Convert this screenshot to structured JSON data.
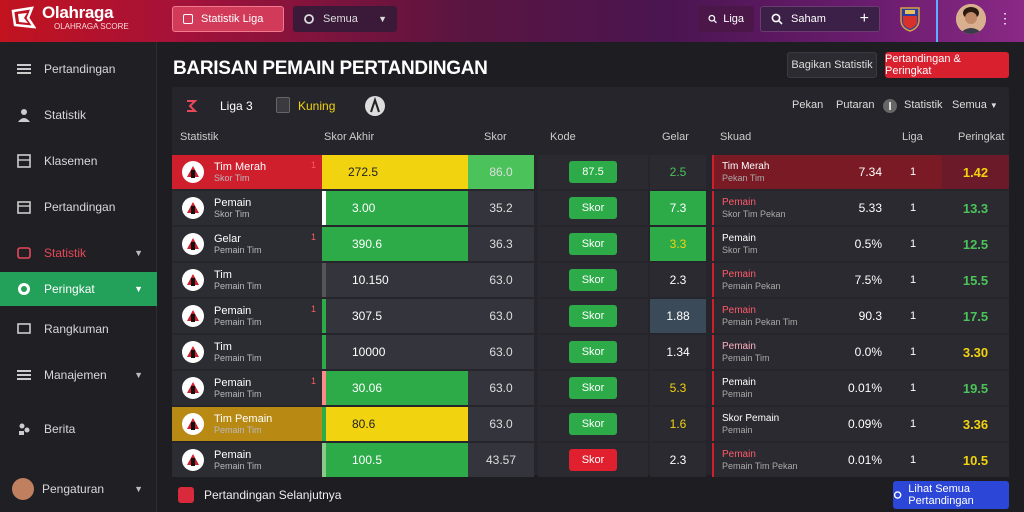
{
  "brand": {
    "title": "Olahraga",
    "subtitle": "OLAHRAGA SCORE"
  },
  "topbar": {
    "pill_a": "Statistik Liga",
    "pill_b": "Semua",
    "pill_c": "Liga",
    "pill_d": "Saham"
  },
  "sidebar": {
    "items": [
      {
        "label": "Pertandingan",
        "icon": "list-icon"
      },
      {
        "label": "Statistik",
        "icon": "person-icon"
      },
      {
        "label": "Klasemen",
        "icon": "table-icon"
      },
      {
        "label": "Pertandingan",
        "icon": "calendar-icon"
      },
      {
        "label": "Statistik",
        "icon": "chart-icon"
      },
      {
        "label": "Peringkat",
        "icon": "target-icon"
      },
      {
        "label": "Rangkuman",
        "icon": "layers-icon"
      },
      {
        "label": "Manajemen",
        "icon": "menu-icon"
      },
      {
        "label": "Berita",
        "icon": "users-icon"
      },
      {
        "label": "Pengaturan",
        "icon": "avatar"
      }
    ]
  },
  "main": {
    "title": "BARISAN PEMAIN PERTANDINGAN",
    "btn_dark": "Bagikan Statistik",
    "btn_red": "Pertandingan & Peringkat",
    "panel": {
      "h1": "Liga 3",
      "h2": "Kuning",
      "h3": "Pekan",
      "h4": "Putaran",
      "h5": "Statistik",
      "h6": "Semua"
    },
    "columns": [
      "Statistik",
      "Skor Akhir",
      "Skor",
      "Kode",
      "Gelar",
      "Skuad",
      "Liga",
      "Peringkat"
    ],
    "rows": [
      {
        "name": "Tim Merah",
        "sub": "Skor Tim",
        "pts": "1",
        "bar": "272.5",
        "v2": "86.0",
        "chip": "87.5",
        "d1": "2.5",
        "info": "Tim Merah",
        "info_sub": "Pekan Tim",
        "pct": "7.34",
        "one": "1",
        "last": "1.42"
      },
      {
        "name": "Pemain",
        "sub": "Skor Tim",
        "pts": "",
        "bar": "3.00",
        "v2": "35.2",
        "chip": "Skor",
        "d1": "7.3",
        "info": "Pemain",
        "info_sub": "Skor Tim Pekan",
        "pct": "5.33",
        "one": "1",
        "last": "13.3"
      },
      {
        "name": "Gelar",
        "sub": "Pemain Tim",
        "pts": "1",
        "bar": "390.6",
        "v2": "36.3",
        "chip": "Skor",
        "d1": "3.3",
        "info": "Pemain",
        "info_sub": "Skor Tim",
        "pct": "0.5%",
        "one": "1",
        "last": "12.5"
      },
      {
        "name": "Tim",
        "sub": "Pemain Tim",
        "pts": "",
        "bar": "10.150",
        "v2": "63.0",
        "chip": "Skor",
        "d1": "2.3",
        "info": "Pemain",
        "info_sub": "Pemain Pekan",
        "pct": "7.5%",
        "one": "1",
        "last": "15.5"
      },
      {
        "name": "Pemain",
        "sub": "Pemain Tim",
        "pts": "1",
        "bar": "307.5",
        "v2": "63.0",
        "chip": "Skor",
        "d1": "1.88",
        "info": "Pemain",
        "info_sub": "Pemain Pekan Tim",
        "pct": "90.3",
        "one": "1",
        "last": "17.5"
      },
      {
        "name": "Tim",
        "sub": "Pemain Tim",
        "pts": "",
        "bar": "10000",
        "v2": "63.0",
        "chip": "Skor",
        "d1": "1.34",
        "info": "Pemain",
        "info_sub": "Pemain Tim",
        "pct": "0.0%",
        "one": "1",
        "last": "3.30"
      },
      {
        "name": "Pemain",
        "sub": "Pemain Tim",
        "pts": "1",
        "bar": "30.06",
        "v2": "63.0",
        "chip": "Skor",
        "d1": "5.3",
        "info": "Pemain",
        "info_sub": "Pemain",
        "pct": "0.01%",
        "one": "1",
        "last": "19.5"
      },
      {
        "name": "Tim Pemain",
        "sub": "Pemain Tim",
        "pts": "",
        "bar": "80.6",
        "v2": "63.0",
        "chip": "Skor",
        "d1": "1.6",
        "info": "Skor Pemain",
        "info_sub": "Pemain",
        "pct": "0.09%",
        "one": "1",
        "last": "3.36"
      },
      {
        "name": "Pemain",
        "sub": "Pemain Tim",
        "pts": "",
        "bar": "100.5",
        "v2": "43.57",
        "chip": "Skor",
        "d1": "2.3",
        "info": "Pemain",
        "info_sub": "Pemain Tim Pekan",
        "pct": "0.01%",
        "one": "1",
        "last": "10.5"
      }
    ],
    "footer_text": "Pertandingan Selanjutnya",
    "btn_blue": "Lihat Semua Pertandingan"
  },
  "colors": {
    "red": "#d8202e",
    "green": "#2cab48",
    "yellow": "#f2d30f",
    "accent": "#23a05a",
    "blue": "#2c46d8"
  }
}
